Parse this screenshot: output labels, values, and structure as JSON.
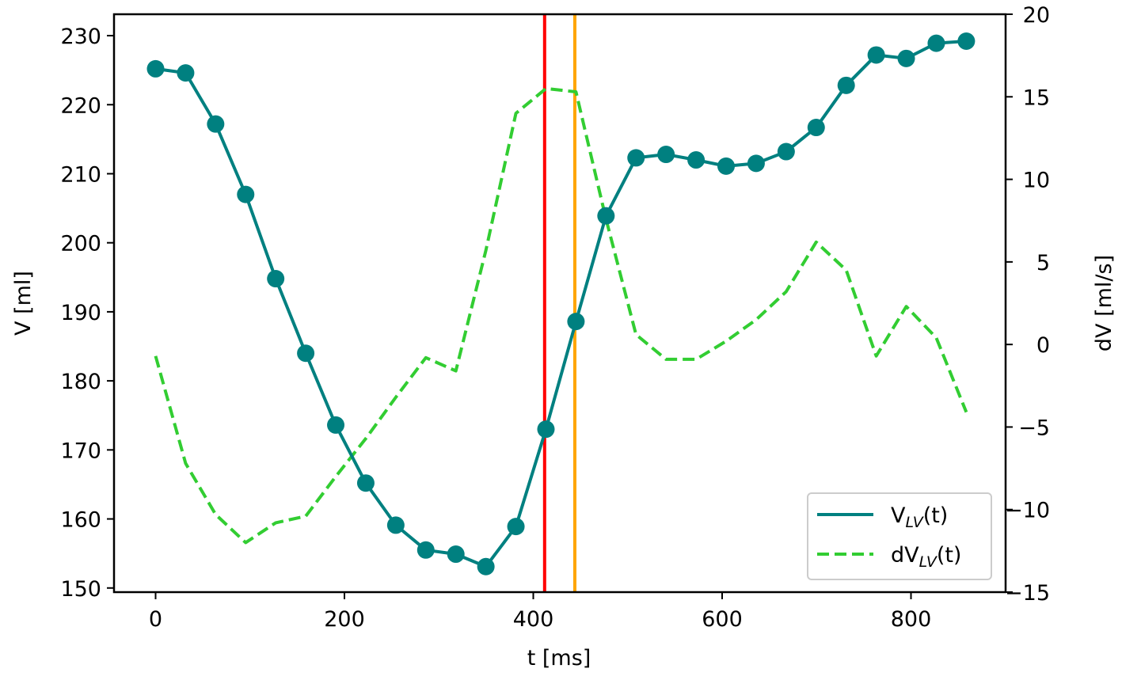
{
  "chart_data": {
    "type": "line",
    "title": "",
    "xlabel": "t [ms]",
    "ylabel": "V [ml]",
    "ylabel_right": "dV [ml/s]",
    "xlim": [
      -40,
      900
    ],
    "ylim": [
      149.4,
      233.1
    ],
    "ylim_right": [
      -15,
      20
    ],
    "xticks": [
      0,
      200,
      400,
      600,
      800
    ],
    "yticks": [
      150,
      160,
      170,
      180,
      190,
      200,
      210,
      220,
      230
    ],
    "yticks_right": [
      -15,
      -10,
      -5,
      0,
      5,
      10,
      15,
      20
    ],
    "grid": false,
    "legend_position": "lower right",
    "x": [
      0,
      31.8,
      63.6,
      95.4,
      127.2,
      159.0,
      190.8,
      222.6,
      254.4,
      286.2,
      318.0,
      349.8,
      381.6,
      413.4,
      445.2,
      477.0,
      508.8,
      540.6,
      572.4,
      604.2,
      636.0,
      667.8,
      699.6,
      731.4,
      763.2,
      795.0,
      826.8,
      858.6
    ],
    "series": [
      {
        "name": "V_LV(t)",
        "axis": "left",
        "style": "solid-markers",
        "color": "#008080",
        "values": [
          225.2,
          224.6,
          217.2,
          207.0,
          194.8,
          184.0,
          173.6,
          165.2,
          159.1,
          155.5,
          154.9,
          153.1,
          158.9,
          173.0,
          188.6,
          203.9,
          212.3,
          212.8,
          212.0,
          211.1,
          211.5,
          213.2,
          216.7,
          222.8,
          227.2,
          226.7,
          228.9,
          229.2
        ]
      },
      {
        "name": "dV_LV(t)",
        "axis": "right",
        "style": "dashed",
        "color": "#32CD32",
        "values": [
          -0.7,
          -7.2,
          -10.3,
          -12.0,
          -10.8,
          -10.4,
          -8.0,
          -5.7,
          -3.2,
          -0.8,
          -1.6,
          5.7,
          14.0,
          15.5,
          15.3,
          7.6,
          0.6,
          -0.9,
          -0.9,
          0.2,
          1.5,
          3.2,
          6.2,
          4.5,
          -0.7,
          2.3,
          0.4,
          -4.1
        ]
      }
    ],
    "vlines": [
      {
        "x": 412,
        "color": "#FF0000"
      },
      {
        "x": 444,
        "color": "#FFA500"
      }
    ],
    "legend": [
      {
        "main": "V",
        "sub": "LV",
        "suffix": "(t)",
        "style": "solid",
        "color": "#008080"
      },
      {
        "main": "dV",
        "sub": "LV",
        "suffix": "(t)",
        "style": "dashed",
        "color": "#32CD32"
      }
    ]
  }
}
